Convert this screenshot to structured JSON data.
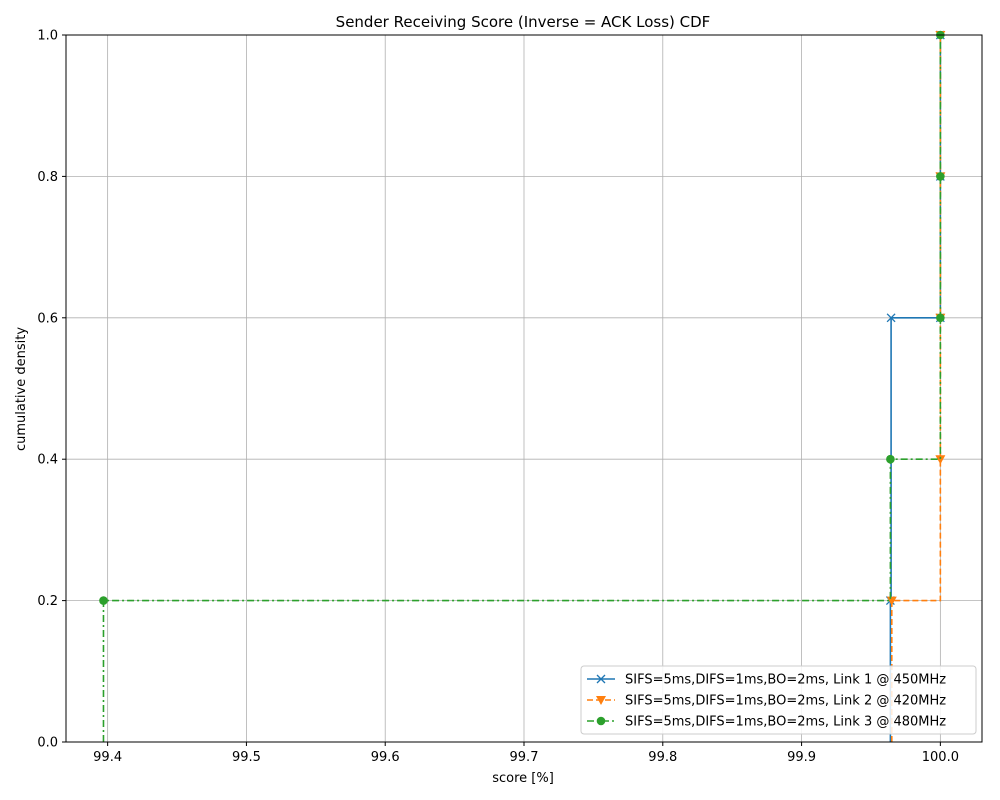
{
  "chart_data": {
    "type": "line",
    "title": "Sender Receiving Score (Inverse = ACK Loss) CDF",
    "xlabel": "score [%]",
    "ylabel": "cumulative density",
    "xlim": [
      99.37,
      100.03
    ],
    "ylim": [
      0.0,
      1.0
    ],
    "xticks": [
      "99.4",
      "99.5",
      "99.6",
      "99.7",
      "99.8",
      "99.9",
      "100.0"
    ],
    "yticks": [
      "0.0",
      "0.2",
      "0.4",
      "0.6",
      "0.8",
      "1.0"
    ],
    "grid": true,
    "legend_position": "lower-right",
    "series": [
      {
        "name": "SIFS=5ms,DIFS=1ms,BO=2ms, Link 1 @ 450MHz",
        "color": "#1f77b4",
        "linestyle": "solid",
        "marker": "x",
        "x": [
          99.964,
          99.9645,
          100.0,
          100.0,
          100.0
        ],
        "y": [
          0.2,
          0.6,
          0.6,
          0.8,
          1.0
        ]
      },
      {
        "name": "SIFS=5ms,DIFS=1ms,BO=2ms, Link 2 @ 420MHz",
        "color": "#ff7f0e",
        "linestyle": "dashed",
        "marker": "triangle-down",
        "x": [
          99.965,
          100.0,
          100.0,
          100.0,
          100.0
        ],
        "y": [
          0.2,
          0.4,
          0.6,
          0.8,
          1.0
        ]
      },
      {
        "name": "SIFS=5ms,DIFS=1ms,BO=2ms, Link 3 @ 480MHz",
        "color": "#2ca02c",
        "linestyle": "dashdot",
        "marker": "circle",
        "x": [
          99.397,
          99.964,
          100.0,
          100.0,
          100.0
        ],
        "y": [
          0.2,
          0.4,
          0.6,
          0.8,
          1.0
        ]
      }
    ]
  }
}
